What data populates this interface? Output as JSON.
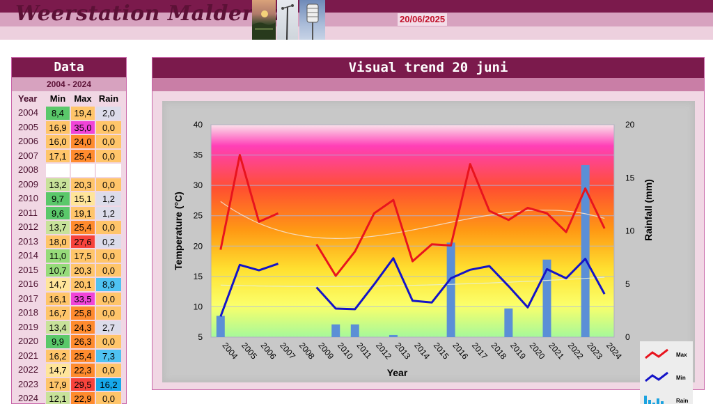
{
  "header": {
    "title": "Weerstation Malderen",
    "date": "20/06/2025"
  },
  "table": {
    "title": "Data",
    "period": "2004 - 2024",
    "headers": [
      "Year",
      "Min",
      "Max",
      "Rain"
    ],
    "rows": [
      {
        "year": "2004",
        "min": "8,4",
        "max": "19,4",
        "rain": "2,0"
      },
      {
        "year": "2005",
        "min": "16,9",
        "max": "35,0",
        "rain": "0,0"
      },
      {
        "year": "2006",
        "min": "16,0",
        "max": "24,0",
        "rain": "0,0"
      },
      {
        "year": "2007",
        "min": "17,1",
        "max": "25,4",
        "rain": "0,0"
      },
      {
        "year": "2008",
        "min": "",
        "max": "",
        "rain": ""
      },
      {
        "year": "2009",
        "min": "13,2",
        "max": "20,3",
        "rain": "0,0"
      },
      {
        "year": "2010",
        "min": "9,7",
        "max": "15,1",
        "rain": "1,2"
      },
      {
        "year": "2011",
        "min": "9,6",
        "max": "19,1",
        "rain": "1,2"
      },
      {
        "year": "2012",
        "min": "13,7",
        "max": "25,4",
        "rain": "0,0"
      },
      {
        "year": "2013",
        "min": "18,0",
        "max": "27,6",
        "rain": "0,2"
      },
      {
        "year": "2014",
        "min": "11,0",
        "max": "17,5",
        "rain": "0,0"
      },
      {
        "year": "2015",
        "min": "10,7",
        "max": "20,3",
        "rain": "0,0"
      },
      {
        "year": "2016",
        "min": "14,7",
        "max": "20,1",
        "rain": "8,9"
      },
      {
        "year": "2017",
        "min": "16,1",
        "max": "33,5",
        "rain": "0,0"
      },
      {
        "year": "2018",
        "min": "16,7",
        "max": "25,8",
        "rain": "0,0"
      },
      {
        "year": "2019",
        "min": "13,4",
        "max": "24,3",
        "rain": "2,7"
      },
      {
        "year": "2020",
        "min": "9,9",
        "max": "26,3",
        "rain": "0,0"
      },
      {
        "year": "2021",
        "min": "16,2",
        "max": "25,4",
        "rain": "7,3"
      },
      {
        "year": "2022",
        "min": "14,7",
        "max": "22,3",
        "rain": "0,0"
      },
      {
        "year": "2023",
        "min": "17,9",
        "max": "29,5",
        "rain": "16,2"
      },
      {
        "year": "2024",
        "min": "12,1",
        "max": "22,9",
        "rain": "0,0"
      }
    ]
  },
  "chart_panel": {
    "title": "Visual trend 20 juni"
  },
  "chart_data": {
    "type": "line",
    "x": [
      "2004",
      "2005",
      "2006",
      "2007",
      "2008",
      "2009",
      "2010",
      "2011",
      "2012",
      "2013",
      "2014",
      "2015",
      "2016",
      "2017",
      "2018",
      "2019",
      "2020",
      "2021",
      "2022",
      "2023",
      "2024"
    ],
    "series": [
      {
        "name": "Max",
        "type": "line",
        "axis": "left",
        "color": "#e8141e",
        "values": [
          19.4,
          35.0,
          24.0,
          25.4,
          null,
          20.3,
          15.1,
          19.1,
          25.4,
          27.6,
          17.5,
          20.3,
          20.1,
          33.5,
          25.8,
          24.3,
          26.3,
          25.4,
          22.3,
          29.5,
          22.9
        ]
      },
      {
        "name": "Min",
        "type": "line",
        "axis": "left",
        "color": "#1414c8",
        "values": [
          8.4,
          16.9,
          16.0,
          17.1,
          null,
          13.2,
          9.7,
          9.6,
          13.7,
          18.0,
          11.0,
          10.7,
          14.7,
          16.1,
          16.7,
          13.4,
          9.9,
          16.2,
          14.7,
          17.9,
          12.1
        ]
      },
      {
        "name": "Rain",
        "type": "bar",
        "axis": "right",
        "color": "#5b8fd6",
        "values": [
          2.0,
          0.0,
          0.0,
          0.0,
          null,
          0.0,
          1.2,
          1.2,
          0.0,
          0.2,
          0.0,
          0.0,
          8.9,
          0.0,
          0.0,
          2.7,
          0.0,
          7.3,
          0.0,
          16.2,
          0.0
        ]
      }
    ],
    "xlabel": "Year",
    "ylabel": "Temperature (°C)",
    "y2label": "Rainfall (mm)",
    "ylim": [
      5,
      40
    ],
    "yticks": [
      "5",
      "10",
      "15",
      "20",
      "25",
      "30",
      "35",
      "40"
    ],
    "y2lim": [
      0,
      20
    ],
    "y2ticks": [
      "0",
      "5",
      "10",
      "15",
      "20"
    ],
    "grid": true,
    "legend": "bottom-right"
  },
  "colors": {
    "header_dark": "#7b1a4c",
    "header_light": "#d7a2bf",
    "max_line": "#e8141e",
    "min_line": "#1414c8",
    "rain_bar": "#5b8fd6"
  }
}
